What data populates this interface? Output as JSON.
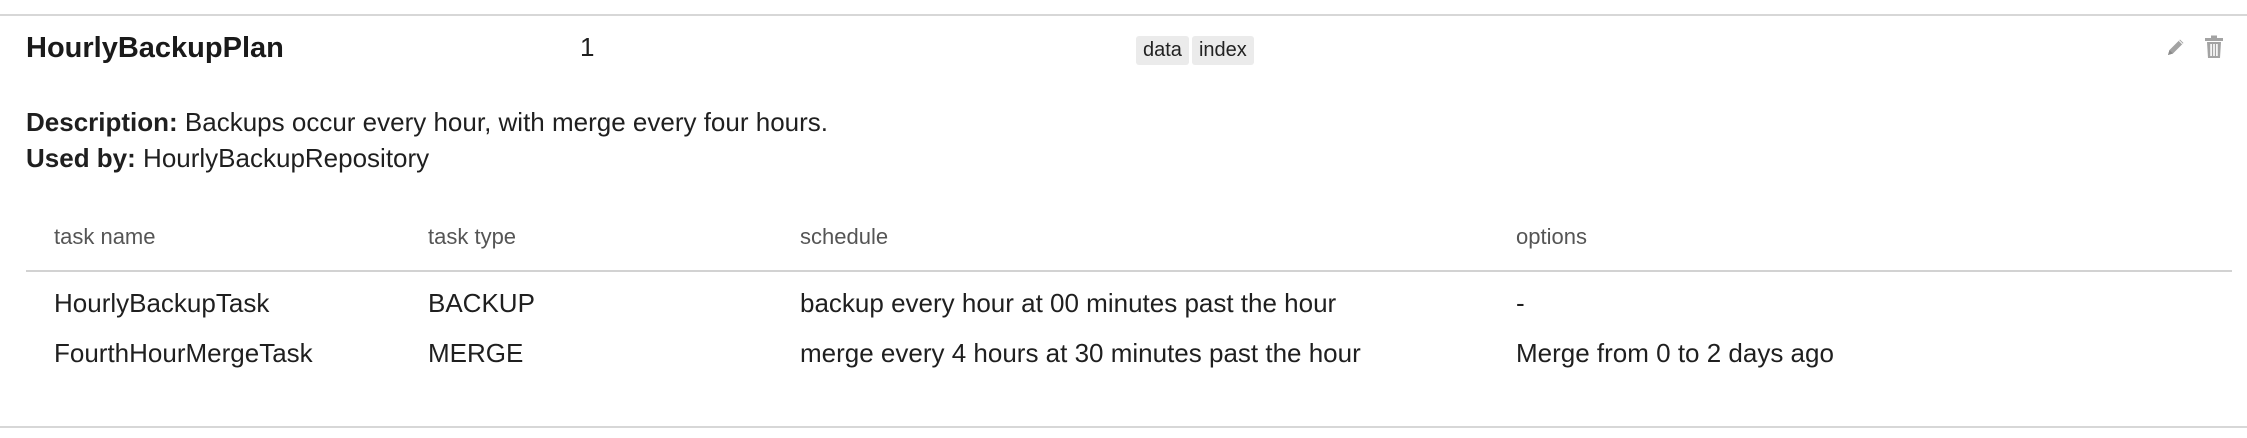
{
  "plan": {
    "name": "HourlyBackupPlan",
    "count": "1",
    "tags": [
      "data",
      "index"
    ],
    "description_label": "Description:",
    "description": "Backups occur every hour, with merge every four hours.",
    "used_by_label": "Used by:",
    "used_by": "HourlyBackupRepository",
    "actions": {
      "edit_icon": "pencil-icon",
      "delete_icon": "trash-icon"
    }
  },
  "tasks": {
    "headers": [
      "task name",
      "task type",
      "schedule",
      "options"
    ],
    "rows": [
      {
        "name": "HourlyBackupTask",
        "type": "BACKUP",
        "schedule": "backup every hour at 00 minutes past the hour",
        "options": "-"
      },
      {
        "name": "FourthHourMergeTask",
        "type": "MERGE",
        "schedule": "merge every 4 hours at 30 minutes past the hour",
        "options": "Merge from 0 to 2 days ago"
      }
    ]
  },
  "colors": {
    "rule": "#d7d7d7",
    "tag_bg": "#ebebeb",
    "icon": "#9a9a9a"
  }
}
